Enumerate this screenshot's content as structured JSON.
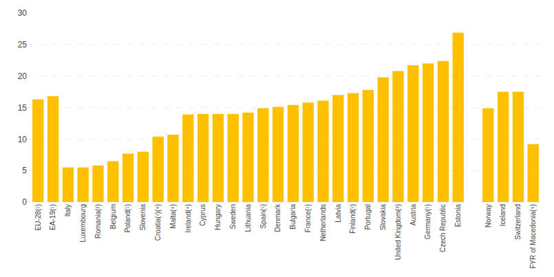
{
  "chart_data": {
    "type": "bar",
    "categories": [
      "EU-28(¹)",
      "EA-19(¹)",
      "Italy",
      "Luxembourg",
      "Romania(²)",
      "Belgium",
      "Poland(¹)",
      "Slovenia",
      "Croatia(¹)(⁴)",
      "Malta(⁴)",
      "Ireland(⁴)",
      "Cyprus",
      "Hungary",
      "Sweden",
      "Lithuania",
      "Spain(¹)",
      "Denmark",
      "Bulgaria",
      "France(¹)",
      "Netherlands",
      "Latvia",
      "Finland(¹)",
      "Portugal",
      "Slovakia",
      "United Kingdom(³)",
      "Austria",
      "Germany(¹)",
      "Czech Republic",
      "Estonia",
      null,
      "Norway",
      "Iceland",
      "Switzerland",
      "FYR of Macedonia(⁴)"
    ],
    "values": [
      16.3,
      16.8,
      5.5,
      5.5,
      5.8,
      6.5,
      7.7,
      8.0,
      10.4,
      10.7,
      13.9,
      14.0,
      14.0,
      14.0,
      14.2,
      14.9,
      15.1,
      15.4,
      15.8,
      16.1,
      17.0,
      17.3,
      17.8,
      19.8,
      20.8,
      21.7,
      22.0,
      22.4,
      26.9,
      0,
      14.9,
      17.5,
      17.5,
      9.2
    ],
    "colors": [
      "#FFC000",
      "#FFC000",
      "#FFC000",
      "#FFC000",
      "#FFC000",
      "#FFC000",
      "#FFC000",
      "#FFC000",
      "#FFC000",
      "#FFC000",
      "#FFC000",
      "#FFC000",
      "#FFC000",
      "#FFC000",
      "#FFC000",
      "#FFC000",
      "#FFC000",
      "#FFC000",
      "#FFC000",
      "#FFC000",
      "#FFC000",
      "#FFC000",
      "#FFC000",
      "#FFC000",
      "#FFC000",
      "#FFC000",
      "#FFC000",
      "#FFC000",
      "#FFC000",
      "#ffffff",
      "#FFC000",
      "#FFC000",
      "#FFC000",
      "#FFC000"
    ],
    "ylim": [
      0,
      30
    ],
    "yticks": [
      0,
      5,
      10,
      15,
      20,
      25,
      30
    ],
    "grid": true
  }
}
